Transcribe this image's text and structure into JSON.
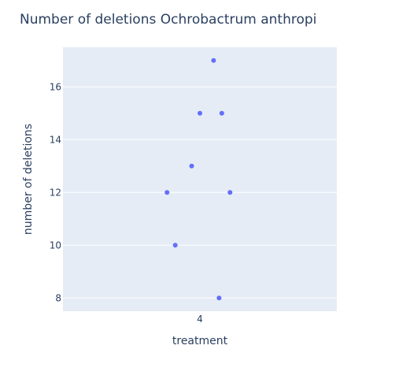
{
  "chart_data": {
    "type": "scatter",
    "title": "Number of deletions Ochrobactrum anthropi",
    "xlabel": "treatment",
    "ylabel": "number of deletions",
    "x_categories": [
      "4"
    ],
    "ylim": [
      7.5,
      17.5
    ],
    "y_ticks": [
      8,
      10,
      12,
      14,
      16
    ],
    "grid": true,
    "marker_color": "#636efa",
    "background_color": "#e5ecf6",
    "points": [
      {
        "x": "4",
        "jitter": 0.05,
        "y": 17
      },
      {
        "x": "4",
        "jitter": 0.0,
        "y": 15
      },
      {
        "x": "4",
        "jitter": 0.08,
        "y": 15
      },
      {
        "x": "4",
        "jitter": -0.03,
        "y": 13
      },
      {
        "x": "4",
        "jitter": -0.12,
        "y": 12
      },
      {
        "x": "4",
        "jitter": 0.11,
        "y": 12
      },
      {
        "x": "4",
        "jitter": -0.09,
        "y": 10
      },
      {
        "x": "4",
        "jitter": 0.07,
        "y": 8
      }
    ]
  }
}
